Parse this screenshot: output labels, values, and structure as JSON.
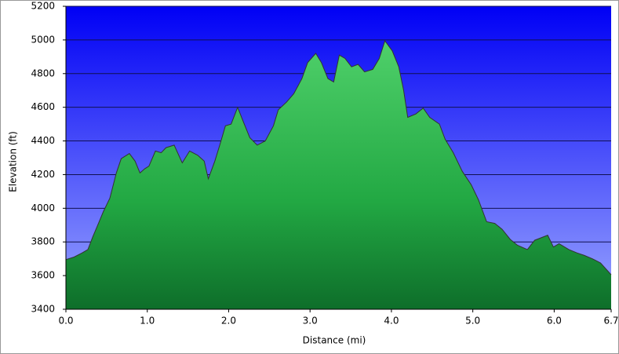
{
  "chart_data": {
    "type": "area",
    "x_label": "Distance (mi)",
    "y_label": "Elevation (ft)",
    "x": [
      0,
      0.1,
      0.2,
      0.27,
      0.33,
      0.4,
      0.46,
      0.54,
      0.62,
      0.68,
      0.78,
      0.85,
      0.91,
      0.97,
      1.02,
      1.1,
      1.17,
      1.23,
      1.33,
      1.43,
      1.52,
      1.62,
      1.7,
      1.75,
      1.83,
      1.89,
      1.96,
      2.03,
      2.11,
      2.18,
      2.26,
      2.35,
      2.45,
      2.55,
      2.61,
      2.71,
      2.8,
      2.9,
      2.97,
      3.07,
      3.14,
      3.22,
      3.29,
      3.36,
      3.43,
      3.51,
      3.59,
      3.67,
      3.77,
      3.85,
      3.92,
      4.01,
      4.09,
      4.15,
      4.2,
      4.3,
      4.39,
      4.47,
      4.59,
      4.66,
      4.76,
      4.87,
      4.98,
      5.07,
      5.17,
      5.27,
      5.36,
      5.46,
      5.55,
      5.67,
      5.76,
      5.92,
      5.99,
      6.06,
      6.18,
      6.28,
      6.37,
      6.47,
      6.57,
      6.7
    ],
    "values": [
      3695,
      3710,
      3735,
      3755,
      3830,
      3910,
      3980,
      4060,
      4210,
      4295,
      4325,
      4280,
      4210,
      4235,
      4250,
      4340,
      4330,
      4360,
      4375,
      4270,
      4340,
      4315,
      4280,
      4175,
      4280,
      4375,
      4490,
      4500,
      4600,
      4515,
      4420,
      4375,
      4400,
      4490,
      4585,
      4630,
      4680,
      4770,
      4865,
      4920,
      4865,
      4770,
      4750,
      4910,
      4890,
      4840,
      4855,
      4810,
      4825,
      4890,
      4995,
      4935,
      4840,
      4700,
      4540,
      4560,
      4595,
      4540,
      4500,
      4410,
      4330,
      4220,
      4140,
      4050,
      3920,
      3910,
      3875,
      3815,
      3780,
      3755,
      3810,
      3840,
      3770,
      3790,
      3755,
      3735,
      3720,
      3700,
      3675,
      3605
    ],
    "color": "#1e9e3e",
    "line_color": "#333333",
    "xlim": [
      0,
      6.7
    ],
    "ylim": [
      3400,
      5200
    ],
    "xticks": [
      {
        "value": 0,
        "label": "0.0"
      },
      {
        "value": 1,
        "label": "1.0"
      },
      {
        "value": 2,
        "label": "2.0"
      },
      {
        "value": 3,
        "label": "3.0"
      },
      {
        "value": 4,
        "label": "4.0"
      },
      {
        "value": 5,
        "label": "5.0"
      },
      {
        "value": 6,
        "label": "6.0"
      },
      6.7
    ],
    "yticks": [
      3400,
      3600,
      3800,
      4000,
      4200,
      4400,
      4600,
      4800,
      5000,
      5200
    ],
    "grid": true
  }
}
